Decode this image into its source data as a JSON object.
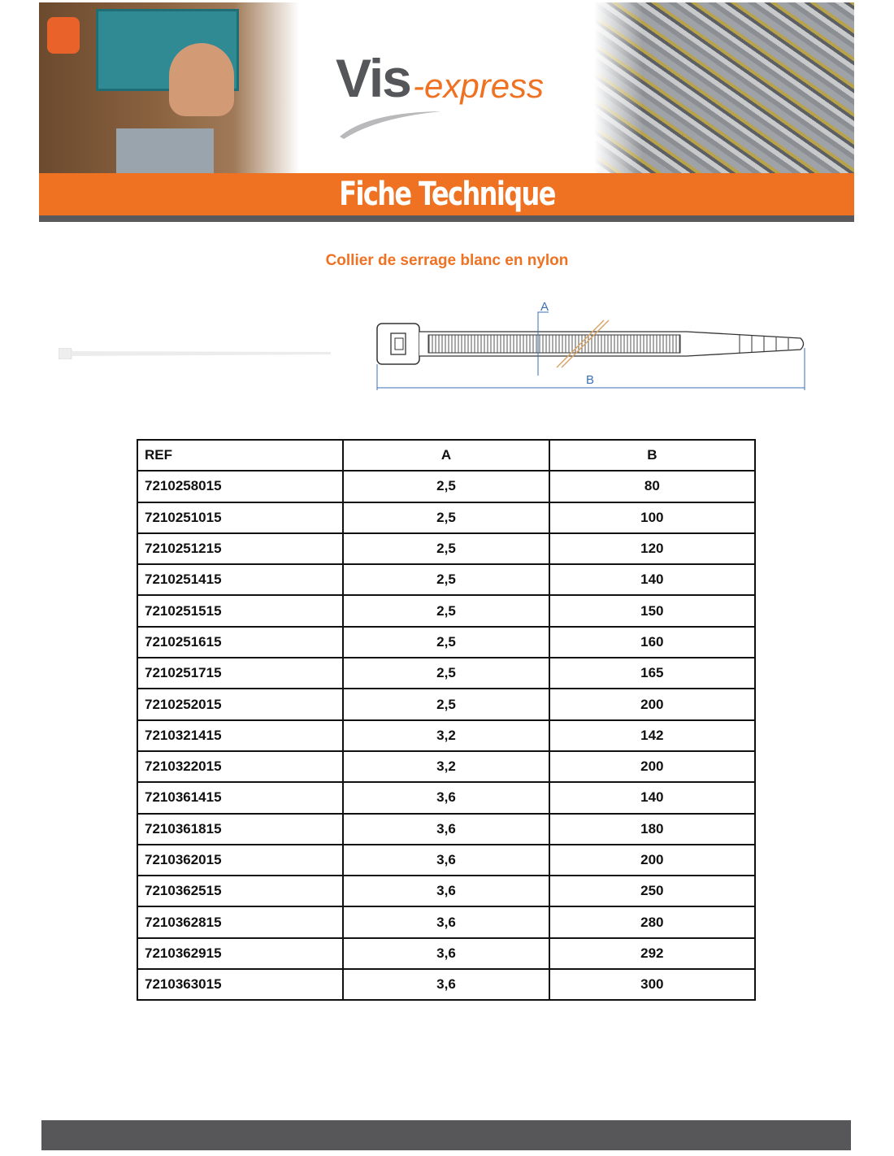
{
  "brand": {
    "logo_main": "Vis",
    "logo_suffix": "-express",
    "accent": "#ef7223",
    "gray": "#57575a"
  },
  "banner": {
    "title": "Fiche Technique"
  },
  "product": {
    "title": "Collier de serrage blanc en nylon"
  },
  "diagram": {
    "label_a": "A",
    "label_b": "B"
  },
  "table": {
    "headers": [
      "REF",
      "A",
      "B"
    ],
    "rows": [
      [
        "7210258015",
        "2,5",
        "80"
      ],
      [
        "7210251015",
        "2,5",
        "100"
      ],
      [
        "7210251215",
        "2,5",
        "120"
      ],
      [
        "7210251415",
        "2,5",
        "140"
      ],
      [
        "7210251515",
        "2,5",
        "150"
      ],
      [
        "7210251615",
        "2,5",
        "160"
      ],
      [
        "7210251715",
        "2,5",
        "165"
      ],
      [
        "7210252015",
        "2,5",
        "200"
      ],
      [
        "7210321415",
        "3,2",
        "142"
      ],
      [
        "7210322015",
        "3,2",
        "200"
      ],
      [
        "7210361415",
        "3,6",
        "140"
      ],
      [
        "7210361815",
        "3,6",
        "180"
      ],
      [
        "7210362015",
        "3,6",
        "200"
      ],
      [
        "7210362515",
        "3,6",
        "250"
      ],
      [
        "7210362815",
        "3,6",
        "280"
      ],
      [
        "7210362915",
        "3,6",
        "292"
      ],
      [
        "7210363015",
        "3,6",
        "300"
      ]
    ]
  }
}
